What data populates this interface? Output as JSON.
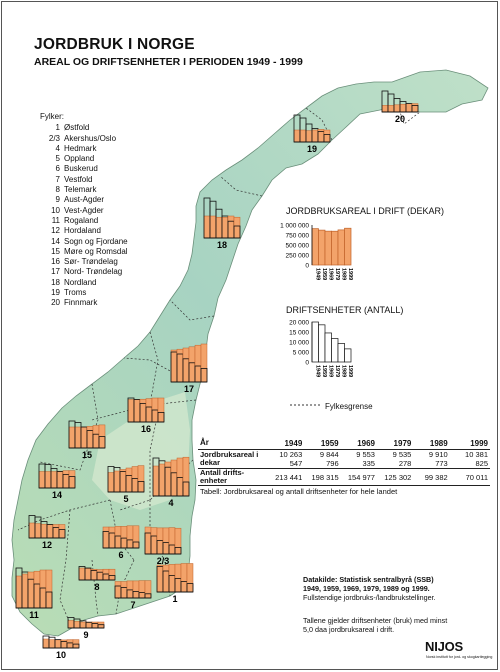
{
  "title": "JORDBRUK I NORGE",
  "subtitle": "AREAL OG DRIFTSENHETER I PERIODEN 1949 - 1999",
  "legend": {
    "heading": "Fylker:",
    "items": [
      {
        "num": "1",
        "name": "Østfold"
      },
      {
        "num": "2/3",
        "name": "Akershus/Oslo"
      },
      {
        "num": "4",
        "name": "Hedmark"
      },
      {
        "num": "5",
        "name": "Oppland"
      },
      {
        "num": "6",
        "name": "Buskerud"
      },
      {
        "num": "7",
        "name": "Vestfold"
      },
      {
        "num": "8",
        "name": "Telemark"
      },
      {
        "num": "9",
        "name": "Aust-Agder"
      },
      {
        "num": "10",
        "name": "Vest-Agder"
      },
      {
        "num": "11",
        "name": "Rogaland"
      },
      {
        "num": "12",
        "name": "Hordaland"
      },
      {
        "num": "14",
        "name": "Sogn og Fjordane"
      },
      {
        "num": "15",
        "name": "Møre og Romsdal"
      },
      {
        "num": "16",
        "name": "Sør- Trøndelag"
      },
      {
        "num": "17",
        "name": "Nord- Trøndelag"
      },
      {
        "num": "18",
        "name": "Nordland"
      },
      {
        "num": "19",
        "name": "Troms"
      },
      {
        "num": "20",
        "name": "Finnmark"
      }
    ]
  },
  "key_area": {
    "title": "JORDBRUKSAREAL I DRIFT (DEKAR)",
    "ticks": [
      "1 000 000",
      "750 000",
      "500 000",
      "250 000",
      "0"
    ],
    "years": [
      "1949",
      "1959",
      "1969",
      "1979",
      "1989",
      "1999"
    ]
  },
  "key_units": {
    "title": "DRIFTSENHETER (ANTALL)",
    "ticks": [
      "20 000",
      "15 000",
      "10 000",
      "5 000",
      "0"
    ],
    "years": [
      "1949",
      "1959",
      "1969",
      "1979",
      "1989",
      "1999"
    ]
  },
  "boundary_label": "Fylkesgrense",
  "table": {
    "header": [
      "År",
      "1949",
      "1959",
      "1969",
      "1979",
      "1989",
      "1999"
    ],
    "rows": [
      {
        "label": "Jordbruksareal i dekar",
        "values": [
          "10 263 547",
          "9 844 796",
          "9 553 335",
          "9 535 278",
          "9 910 773",
          "10 381 825"
        ]
      },
      {
        "label": "Antall drifts- enheter",
        "values": [
          "213 441",
          "198 315",
          "154 977",
          "125 302",
          "99 382",
          "70 011"
        ]
      }
    ],
    "caption": "Tabell: Jordbruksareal og antall driftsenheter for hele landet"
  },
  "source": {
    "line1": "Datakilde: Statistisk sentralbyrå (SSB)",
    "line2": "1949, 1959, 1969, 1979, 1989 og 1999.",
    "line3": "Fullstendige jordbruks-/landbrukstellinger."
  },
  "note": {
    "line1": "Tallene gjelder driftsenheter (bruk) med minst",
    "line2": "5,0 daa jordbruksareal i drift."
  },
  "logo": {
    "name": "NIJOS",
    "subline": "Norsk institutt for jord- og skogkartlegging"
  },
  "colors": {
    "land": "#a9d6b8",
    "highland": "#cfe6c9",
    "area_bar": "#f3a36a",
    "unit_bar": "#ffffff",
    "border": "#444444"
  },
  "chart_data": {
    "type": "bar",
    "title": "JORDBRUK I NORGE",
    "categories": [
      "1949",
      "1959",
      "1969",
      "1979",
      "1989",
      "1999"
    ],
    "series": [
      {
        "name": "Jordbruksareal i dekar",
        "values": [
          10263547,
          9844796,
          9553335,
          9535278,
          9910773,
          10381825
        ]
      },
      {
        "name": "Antall driftsenheter",
        "values": [
          213441,
          198315,
          154977,
          125302,
          99382,
          70011
        ]
      }
    ],
    "county_charts": [
      {
        "id": "1",
        "area_rel": [
          0.9,
          0.9,
          0.92,
          0.93,
          0.95,
          0.95
        ],
        "units_rel": [
          0.85,
          0.7,
          0.55,
          0.45,
          0.35,
          0.28
        ]
      },
      {
        "id": "2/3",
        "area_rel": [
          0.9,
          0.88,
          0.87,
          0.87,
          0.88,
          0.86
        ],
        "units_rel": [
          0.7,
          0.6,
          0.45,
          0.38,
          0.3,
          0.22
        ]
      },
      {
        "id": "4",
        "area_rel": [
          0.75,
          0.8,
          0.85,
          0.9,
          0.95,
          0.97
        ],
        "units_rel": [
          0.95,
          0.88,
          0.72,
          0.58,
          0.46,
          0.35
        ]
      },
      {
        "id": "5",
        "area_rel": [
          0.65,
          0.7,
          0.75,
          0.8,
          0.85,
          0.88
        ],
        "units_rel": [
          0.85,
          0.82,
          0.68,
          0.55,
          0.45,
          0.35
        ]
      },
      {
        "id": "6",
        "area_rel": [
          0.7,
          0.7,
          0.72,
          0.72,
          0.74,
          0.74
        ],
        "units_rel": [
          0.55,
          0.5,
          0.4,
          0.33,
          0.27,
          0.2
        ]
      },
      {
        "id": "7",
        "area_rel": [
          0.55,
          0.55,
          0.57,
          0.57,
          0.58,
          0.58
        ],
        "units_rel": [
          0.4,
          0.35,
          0.27,
          0.22,
          0.18,
          0.14
        ]
      },
      {
        "id": "8",
        "area_rel": [
          0.4,
          0.38,
          0.36,
          0.35,
          0.36,
          0.36
        ],
        "units_rel": [
          0.45,
          0.4,
          0.32,
          0.26,
          0.2,
          0.15
        ]
      },
      {
        "id": "9",
        "area_rel": [
          0.25,
          0.22,
          0.2,
          0.2,
          0.2,
          0.2
        ],
        "units_rel": [
          0.35,
          0.3,
          0.24,
          0.19,
          0.15,
          0.11
        ]
      },
      {
        "id": "10",
        "area_rel": [
          0.3,
          0.28,
          0.27,
          0.27,
          0.28,
          0.28
        ],
        "units_rel": [
          0.4,
          0.36,
          0.28,
          0.22,
          0.17,
          0.13
        ]
      },
      {
        "id": "11",
        "area_rel": [
          0.8,
          0.85,
          0.9,
          0.92,
          0.95,
          0.95
        ],
        "units_rel": [
          1.0,
          0.9,
          0.72,
          0.6,
          0.5,
          0.4
        ]
      },
      {
        "id": "12",
        "area_rel": [
          0.5,
          0.48,
          0.46,
          0.45,
          0.45,
          0.45
        ],
        "units_rel": [
          0.75,
          0.7,
          0.55,
          0.45,
          0.35,
          0.28
        ]
      },
      {
        "id": "14",
        "area_rel": [
          0.55,
          0.55,
          0.55,
          0.56,
          0.58,
          0.58
        ],
        "units_rel": [
          0.8,
          0.78,
          0.65,
          0.55,
          0.45,
          0.38
        ]
      },
      {
        "id": "15",
        "area_rel": [
          0.7,
          0.7,
          0.7,
          0.72,
          0.75,
          0.77
        ],
        "units_rel": [
          0.9,
          0.85,
          0.7,
          0.58,
          0.46,
          0.38
        ]
      },
      {
        "id": "16",
        "area_rel": [
          0.75,
          0.75,
          0.76,
          0.78,
          0.8,
          0.8
        ],
        "units_rel": [
          0.8,
          0.75,
          0.62,
          0.5,
          0.4,
          0.32
        ]
      },
      {
        "id": "17",
        "area_rel": [
          0.8,
          0.82,
          0.85,
          0.88,
          0.92,
          0.95
        ],
        "units_rel": [
          0.75,
          0.7,
          0.58,
          0.48,
          0.4,
          0.34
        ]
      },
      {
        "id": "18",
        "area_rel": [
          0.55,
          0.55,
          0.52,
          0.52,
          0.55,
          0.52
        ],
        "units_rel": [
          1.0,
          0.92,
          0.72,
          0.55,
          0.42,
          0.3
        ]
      },
      {
        "id": "19",
        "area_rel": [
          0.4,
          0.4,
          0.38,
          0.4,
          0.42,
          0.4
        ],
        "units_rel": [
          0.9,
          0.8,
          0.6,
          0.45,
          0.35,
          0.25
        ]
      },
      {
        "id": "20",
        "area_rel": [
          0.22,
          0.22,
          0.24,
          0.26,
          0.28,
          0.28
        ],
        "units_rel": [
          0.7,
          0.6,
          0.45,
          0.35,
          0.28,
          0.22
        ]
      }
    ]
  }
}
